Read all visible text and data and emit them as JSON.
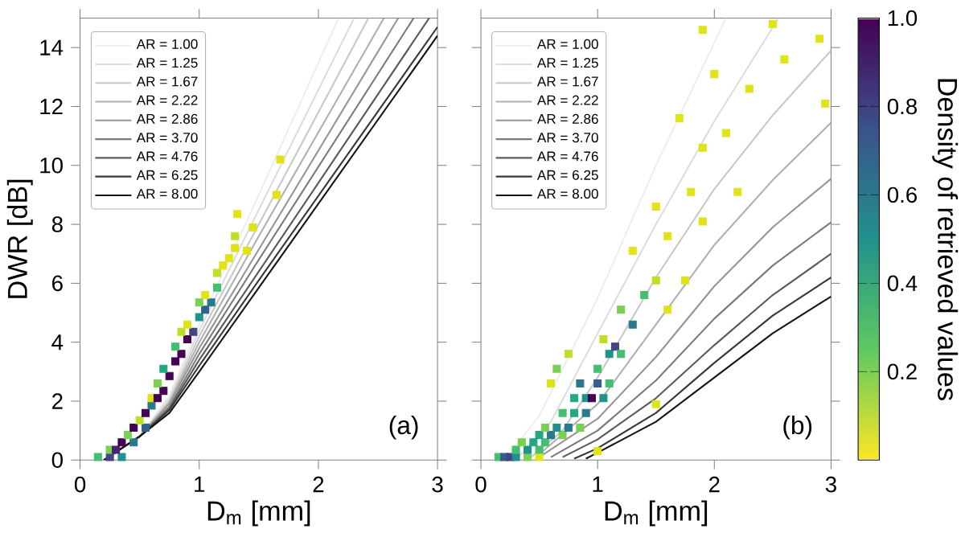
{
  "chart_data": [
    {
      "type": "line",
      "xlabel": "D$_{m}$ [mm]",
      "ylabel": "DWR [dB]",
      "xlim": [
        0,
        3
      ],
      "ylim": [
        0,
        15
      ],
      "xticks": [
        0,
        1,
        2,
        3
      ],
      "yticks": [
        0,
        2,
        4,
        6,
        8,
        10,
        12,
        14
      ],
      "legend": "top left",
      "grid": false,
      "annotations": [
        "(a)"
      ],
      "series": [
        {
          "type": "scatter",
          "marker": "square",
          "x": [
            0.15,
            0.25,
            0.35,
            0.25,
            0.3,
            0.35,
            0.45,
            0.4,
            0.45,
            0.55,
            0.5,
            0.55,
            0.6,
            0.6,
            0.65,
            0.7,
            0.65,
            0.75,
            0.7,
            0.8,
            0.85,
            0.8,
            0.9,
            0.85,
            0.95,
            0.9,
            1.0,
            1.05,
            1.0,
            1.1,
            1.05,
            1.15,
            1.15,
            1.2,
            1.25,
            1.3,
            1.3,
            1.45,
            1.4,
            1.32,
            1.65,
            1.68
          ],
          "values": [
            0.1,
            0.1,
            0.1,
            0.35,
            0.35,
            0.6,
            0.6,
            0.85,
            1.1,
            1.1,
            1.35,
            1.6,
            1.85,
            2.1,
            2.1,
            2.35,
            2.6,
            2.85,
            3.1,
            3.35,
            3.6,
            3.85,
            4.1,
            4.35,
            4.35,
            4.6,
            4.85,
            5.1,
            5.35,
            5.35,
            5.6,
            5.85,
            6.35,
            6.6,
            6.85,
            7.2,
            7.6,
            7.9,
            7.1,
            8.35,
            9.0,
            10.2
          ],
          "colors": [
            "#44bf70",
            "#414487",
            "#21918c",
            "#7ad151",
            "#482475",
            "#440154",
            "#2a788e",
            "#7ad151",
            "#440154",
            "#355f8d",
            "#bddf26",
            "#440154",
            "#2a788e",
            "#dfe318",
            "#440154",
            "#440154",
            "#7ad151",
            "#440154",
            "#22a884",
            "#440154",
            "#440154",
            "#44bf70",
            "#440154",
            "#bddf26",
            "#414487",
            "#dfe318",
            "#21918c",
            "#355f8d",
            "#7ad151",
            "#2a788e",
            "#dfe318",
            "#44bf70",
            "#bddf26",
            "#dfe318",
            "#dfe318",
            "#dfe318",
            "#bddf26",
            "#dfe318",
            "#dfe318",
            "#dfe318",
            "#dfe318",
            "#dfe318"
          ]
        },
        {
          "name": "AR = 1.00",
          "color": "#eeeeee",
          "x": [
            0.2,
            0.5,
            0.75,
            1,
            1.5,
            2.17
          ],
          "values": [
            0,
            0.8,
            2.2,
            4.6,
            9.0,
            15
          ]
        },
        {
          "name": "AR = 1.25",
          "color": "#dddddd",
          "x": [
            0.2,
            0.5,
            0.75,
            1,
            1.5,
            2.3
          ],
          "values": [
            0,
            0.8,
            2.1,
            4.4,
            8.5,
            15
          ]
        },
        {
          "name": "AR = 1.67",
          "color": "#c8c8c8",
          "x": [
            0.2,
            0.5,
            0.75,
            1,
            1.5,
            2.42
          ],
          "values": [
            0,
            0.8,
            2.0,
            4.2,
            8.0,
            15
          ]
        },
        {
          "name": "AR = 2.22",
          "color": "#b0b0b0",
          "x": [
            0.2,
            0.5,
            0.75,
            1,
            1.5,
            2.55
          ],
          "values": [
            0,
            0.8,
            1.95,
            4.0,
            7.6,
            15
          ]
        },
        {
          "name": "AR = 2.86",
          "color": "#969696",
          "x": [
            0.2,
            0.5,
            0.75,
            1,
            1.5,
            2.67
          ],
          "values": [
            0,
            0.8,
            1.9,
            3.8,
            7.15,
            15
          ]
        },
        {
          "name": "AR = 3.70",
          "color": "#7a7a7a",
          "x": [
            0.2,
            0.5,
            0.75,
            1,
            1.5,
            2.8
          ],
          "values": [
            0,
            0.8,
            1.8,
            3.6,
            6.8,
            15
          ]
        },
        {
          "name": "AR = 4.76",
          "color": "#5a5a5a",
          "x": [
            0.2,
            0.5,
            0.75,
            1,
            1.5,
            2.93
          ],
          "values": [
            0,
            0.8,
            1.75,
            3.4,
            6.4,
            15
          ]
        },
        {
          "name": "AR = 6.25",
          "color": "#383838",
          "x": [
            0.2,
            0.5,
            0.75,
            1,
            1.5,
            3
          ],
          "values": [
            0,
            0.8,
            1.7,
            3.2,
            6.1,
            14.7
          ]
        },
        {
          "name": "AR = 8.00",
          "color": "#151515",
          "x": [
            0.2,
            0.5,
            0.75,
            1,
            1.5,
            3
          ],
          "values": [
            0,
            0.8,
            1.6,
            3.0,
            5.85,
            14.4
          ]
        }
      ]
    },
    {
      "type": "line",
      "xlabel": "D$_{m}$ [mm]",
      "xlim": [
        0,
        3
      ],
      "ylim": [
        0,
        15
      ],
      "xticks": [
        0,
        1,
        2,
        3
      ],
      "yticks": [
        0,
        2,
        4,
        6,
        8,
        10,
        12,
        14
      ],
      "tick_labels": "x",
      "legend": "top left",
      "grid": false,
      "clim": [
        0,
        1
      ],
      "cticks": [
        0.2,
        0.4,
        0.6,
        0.8,
        {
          "value": 1,
          "label": "1.0"
        }
      ],
      "clabel": "Density of retrieved values",
      "annotations": [
        "(b)"
      ],
      "series": [
        {
          "type": "scatter",
          "marker": "square",
          "x": [
            0.15,
            0.2,
            0.25,
            0.3,
            0.4,
            0.5,
            0.3,
            0.4,
            0.5,
            0.35,
            0.45,
            0.55,
            0.5,
            0.6,
            0.7,
            0.55,
            0.65,
            0.75,
            0.85,
            0.7,
            0.8,
            0.9,
            0.8,
            0.9,
            0.95,
            1.05,
            0.85,
            1.0,
            1.1,
            1.0,
            1.1,
            1.15,
            1.2,
            1.05,
            1.3,
            1.2,
            1.4,
            1.6,
            1.5,
            1.75,
            1.3,
            1.6,
            1.9,
            1.5,
            1.8,
            2.2,
            1.9,
            2.1,
            1.7,
            2.3,
            2.0,
            2.6,
            1.9,
            2.5,
            2.95,
            2.9,
            1.5,
            1.0,
            0.6,
            0.65,
            0.75
          ],
          "values": [
            0.1,
            0.1,
            0.1,
            0.1,
            0.1,
            0.1,
            0.35,
            0.35,
            0.35,
            0.6,
            0.6,
            0.6,
            0.85,
            0.85,
            0.85,
            1.1,
            1.1,
            1.1,
            1.1,
            1.6,
            1.6,
            1.6,
            2.1,
            2.1,
            2.1,
            2.1,
            2.6,
            2.6,
            2.6,
            3.1,
            3.6,
            3.85,
            3.6,
            4.1,
            4.6,
            5.1,
            5.6,
            5.1,
            6.1,
            6.1,
            7.1,
            7.6,
            8.1,
            8.6,
            9.1,
            9.1,
            10.6,
            11.1,
            11.6,
            12.6,
            13.1,
            13.6,
            14.6,
            14.8,
            12.1,
            14.3,
            1.9,
            0.3,
            2.6,
            3.1,
            3.6
          ],
          "colors": [
            "#44bf70",
            "#355f8d",
            "#414487",
            "#21918c",
            "#7ad151",
            "#dfe318",
            "#44bf70",
            "#21918c",
            "#44bf70",
            "#7ad151",
            "#22a884",
            "#44bf70",
            "#22a884",
            "#2a788e",
            "#7ad151",
            "#7ad151",
            "#21918c",
            "#2a788e",
            "#7ad151",
            "#44bf70",
            "#22a884",
            "#2a788e",
            "#22a884",
            "#21918c",
            "#440154",
            "#21918c",
            "#2a788e",
            "#355f8d",
            "#44bf70",
            "#44bf70",
            "#21918c",
            "#414487",
            "#44bf70",
            "#bddf26",
            "#2a788e",
            "#7ad151",
            "#44bf70",
            "#dfe318",
            "#bddf26",
            "#dfe318",
            "#dfe318",
            "#dfe318",
            "#dfe318",
            "#dfe318",
            "#dfe318",
            "#dfe318",
            "#dfe318",
            "#dfe318",
            "#dfe318",
            "#dfe318",
            "#dfe318",
            "#dfe318",
            "#dfe318",
            "#dfe318",
            "#dfe318",
            "#dfe318",
            "#dfe318",
            "#dfe318",
            "#dfe318",
            "#7ad151",
            "#bddf26"
          ]
        },
        {
          "name": "AR = 1.00",
          "color": "#eeeeee",
          "x": [
            0.2,
            0.5,
            1.0,
            1.5,
            2.1
          ],
          "values": [
            0,
            1.5,
            5.5,
            10,
            15
          ]
        },
        {
          "name": "AR = 1.25",
          "color": "#dddddd",
          "x": [
            0.3,
            0.6,
            1,
            1.5,
            2,
            2.55
          ],
          "values": [
            0,
            1.3,
            4.3,
            8,
            11.5,
            15
          ]
        },
        {
          "name": "AR = 1.67",
          "color": "#c8c8c8",
          "x": [
            0.4,
            0.7,
            1,
            1.5,
            2,
            2.5,
            3
          ],
          "values": [
            0,
            1.0,
            2.8,
            6.2,
            9.2,
            11.7,
            13.9
          ]
        },
        {
          "name": "AR = 2.22",
          "color": "#b0b0b0",
          "x": [
            0.5,
            1,
            1.5,
            2,
            2.5,
            3
          ],
          "values": [
            0.2,
            1.9,
            4.6,
            7.3,
            9.5,
            11.45
          ]
        },
        {
          "name": "AR = 2.86",
          "color": "#969696",
          "x": [
            0.5,
            1,
            1.5,
            2,
            2.5,
            3
          ],
          "values": [
            0.1,
            1.4,
            3.5,
            5.9,
            7.9,
            9.55
          ]
        },
        {
          "name": "AR = 3.70",
          "color": "#7a7a7a",
          "x": [
            0.6,
            1,
            1.5,
            2,
            2.5,
            3
          ],
          "values": [
            0.1,
            1.0,
            2.7,
            4.8,
            6.6,
            8.07
          ]
        },
        {
          "name": "AR = 4.76",
          "color": "#5a5a5a",
          "x": [
            0.7,
            1,
            1.5,
            2,
            2.5,
            3
          ],
          "values": [
            0.1,
            0.7,
            2.1,
            3.9,
            5.6,
            7.0
          ]
        },
        {
          "name": "AR = 6.25",
          "color": "#383838",
          "x": [
            0.8,
            1,
            1.5,
            2,
            2.5,
            3
          ],
          "values": [
            0.05,
            0.4,
            1.6,
            3.3,
            4.9,
            6.2
          ]
        },
        {
          "name": "AR = 8.00",
          "color": "#151515",
          "x": [
            0.9,
            1,
            1.5,
            2,
            2.5,
            3
          ],
          "values": [
            0.05,
            0.25,
            1.3,
            2.8,
            4.3,
            5.55
          ]
        }
      ]
    }
  ]
}
